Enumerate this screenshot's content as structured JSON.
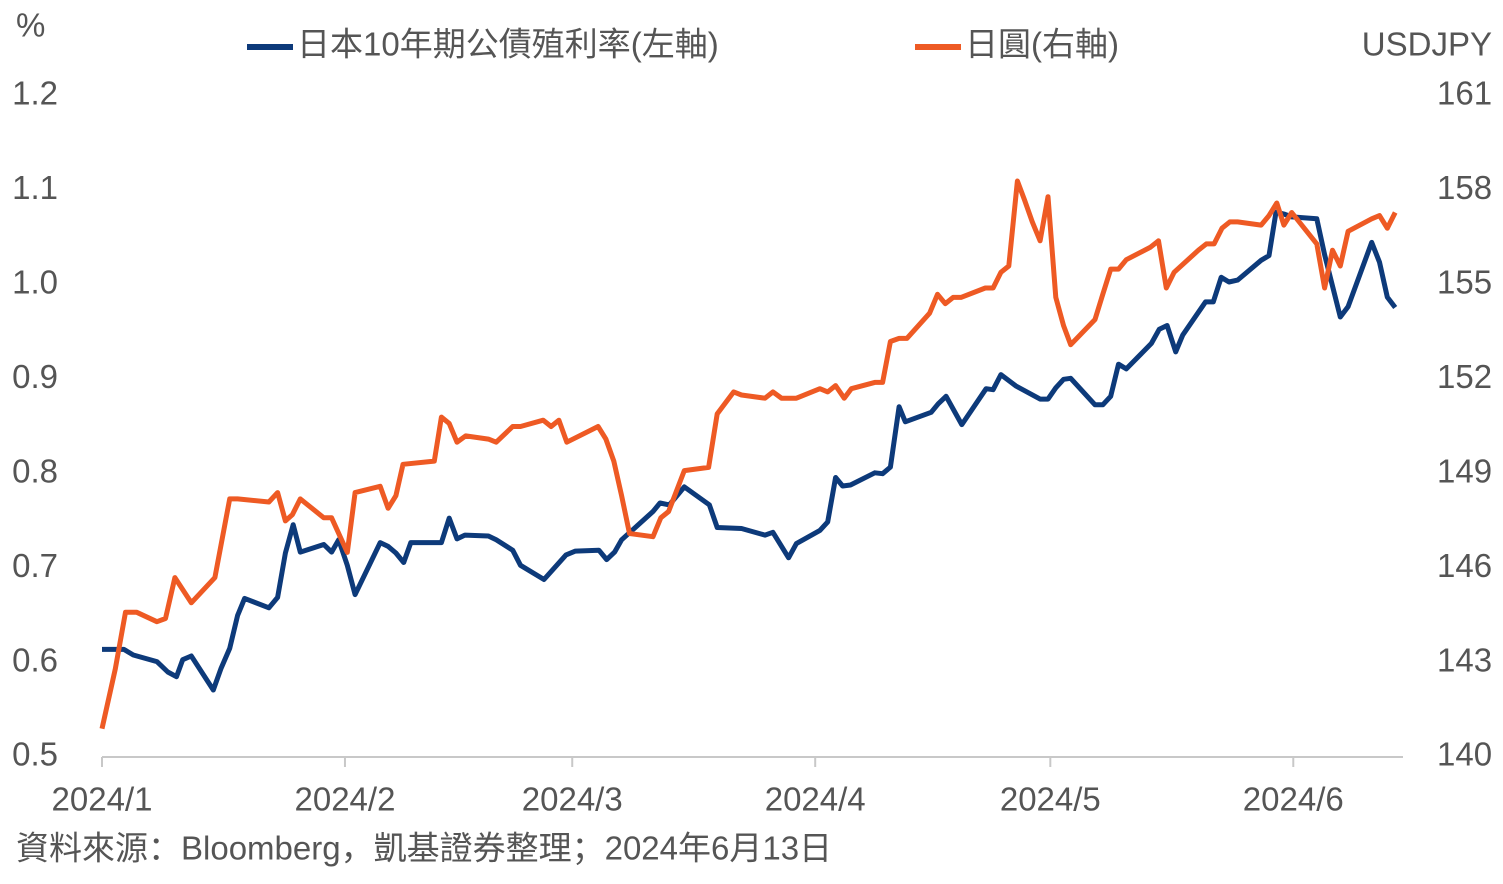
{
  "chart_data": {
    "type": "line",
    "y_label": "%",
    "y2_label": "USDJPY",
    "source": "資料來源：Bloomberg，凱基證券整理；2024年6月13日",
    "xlim": [
      0,
      166
    ],
    "xticks": [
      {
        "value": 0,
        "label": "2024/1"
      },
      {
        "value": 31,
        "label": "2024/2"
      },
      {
        "value": 60,
        "label": "2024/3"
      },
      {
        "value": 91,
        "label": "2024/4"
      },
      {
        "value": 121,
        "label": "2024/5"
      },
      {
        "value": 152,
        "label": "2024/6"
      }
    ],
    "ylim": [
      0.5,
      1.2
    ],
    "yticks": [
      0.5,
      0.6,
      0.7,
      0.8,
      0.9,
      {
        "value": 1,
        "label": "1.0"
      },
      1.1,
      1.2
    ],
    "y2lim": [
      140,
      161
    ],
    "y2ticks": [
      140,
      143,
      146,
      149,
      152,
      155,
      158,
      161
    ],
    "series": [
      {
        "name": "日本10年期公債殖利率(左軸)",
        "color": "#0d3a7a",
        "axis": "y",
        "x": [
          0,
          2.8,
          4,
          7,
          8.4,
          9.5,
          10.3,
          11.4,
          14.2,
          15.2,
          16.3,
          17.3,
          18.2,
          21.3,
          22.4,
          23.4,
          24.4,
          25.3,
          28.3,
          29.3,
          30.2,
          31.3,
          32.3,
          35.5,
          36.5,
          37.5,
          38.5,
          39.4,
          43.3,
          44.3,
          45.3,
          46.3,
          49.3,
          50.3,
          52.4,
          53.4,
          56.4,
          59.2,
          60.4,
          63.4,
          64.4,
          65.4,
          66.3,
          70.3,
          71.2,
          72.4,
          74.3,
          77.5,
          78.5,
          81.6,
          84.6,
          85.6,
          87.6,
          88.6,
          91.6,
          92.6,
          93.6,
          94.5,
          95.5,
          98.6,
          99.6,
          100.6,
          101.7,
          102.5,
          105.8,
          106.7,
          107.7,
          109.7,
          112.8,
          113.7,
          114.7,
          116.6,
          119.7,
          120.7,
          121.7,
          122.7,
          123.6,
          126.7,
          127.7,
          128.7,
          129.7,
          130.7,
          133.9,
          134.9,
          135.9,
          137,
          137.9,
          140.8,
          141.8,
          142.8,
          143.8,
          144.9,
          147.9,
          148.9,
          149.8,
          150.8,
          151.8,
          155,
          156,
          158,
          159,
          162,
          163,
          164,
          165
        ],
        "values": [
          0.614,
          0.614,
          0.608,
          0.601,
          0.59,
          0.585,
          0.603,
          0.607,
          0.571,
          0.594,
          0.615,
          0.65,
          0.668,
          0.658,
          0.669,
          0.716,
          0.746,
          0.717,
          0.725,
          0.717,
          0.73,
          0.703,
          0.672,
          0.727,
          0.723,
          0.716,
          0.706,
          0.727,
          0.727,
          0.753,
          0.731,
          0.735,
          0.734,
          0.73,
          0.719,
          0.703,
          0.688,
          0.714,
          0.718,
          0.719,
          0.709,
          0.717,
          0.73,
          0.76,
          0.769,
          0.767,
          0.786,
          0.767,
          0.743,
          0.742,
          0.735,
          0.738,
          0.711,
          0.726,
          0.74,
          0.749,
          0.796,
          0.787,
          0.788,
          0.801,
          0.8,
          0.807,
          0.871,
          0.855,
          0.865,
          0.874,
          0.882,
          0.852,
          0.89,
          0.889,
          0.905,
          0.893,
          0.879,
          0.879,
          0.891,
          0.9,
          0.901,
          0.873,
          0.873,
          0.882,
          0.916,
          0.911,
          0.938,
          0.953,
          0.957,
          0.929,
          0.947,
          0.982,
          0.982,
          1.008,
          1.003,
          1.005,
          1.026,
          1.031,
          1.077,
          1.075,
          1.072,
          1.07,
          1.032,
          0.966,
          0.977,
          1.045,
          1.024,
          0.987,
          0.976
        ]
      },
      {
        "name": "日圓(右軸)",
        "color": "#ee5a24",
        "axis": "y2",
        "x": [
          0,
          1.7,
          3,
          4.4,
          7,
          8.1,
          9.3,
          11.4,
          14.4,
          16.3,
          17.3,
          21.3,
          22.4,
          23.4,
          24.3,
          25.3,
          28.3,
          29.3,
          31.3,
          32.3,
          35.5,
          36.5,
          37.5,
          38.4,
          42.4,
          43.3,
          44.3,
          45.3,
          46.4,
          49.3,
          50.3,
          52.4,
          53.4,
          56.3,
          57.3,
          58.3,
          59.3,
          63.3,
          64.3,
          65.3,
          66.3,
          67.3,
          70.3,
          71.3,
          72.3,
          74.3,
          77.4,
          78.5,
          80.6,
          81.6,
          84.6,
          85.6,
          86.7,
          87.7,
          88.6,
          91.6,
          92.6,
          93.6,
          94.7,
          95.6,
          98.6,
          99.6,
          100.6,
          101.7,
          102.7,
          105.6,
          106.6,
          107.6,
          108.6,
          109.6,
          112.7,
          113.7,
          114.7,
          115.7,
          116.8,
          117.7,
          118.7,
          119.7,
          120.7,
          121.7,
          122.7,
          123.6,
          126.7,
          127.7,
          128.7,
          129.7,
          130.7,
          133.8,
          134.8,
          135.8,
          136.8,
          139.9,
          140.9,
          141.9,
          142.9,
          143.9,
          144.9,
          147.9,
          148.9,
          149.9,
          150.8,
          151.8,
          155,
          156,
          157,
          158,
          159,
          162,
          163,
          164,
          165
        ],
        "values": [
          140.9,
          142.8,
          144.6,
          144.6,
          144.3,
          144.4,
          145.7,
          144.9,
          145.7,
          148.2,
          148.2,
          148.1,
          148.4,
          147.5,
          147.7,
          148.2,
          147.6,
          147.6,
          146.5,
          148.4,
          148.6,
          147.9,
          148.3,
          149.3,
          149.4,
          150.8,
          150.6,
          150.0,
          150.2,
          150.1,
          150.0,
          150.5,
          150.5,
          150.7,
          150.5,
          150.7,
          150.0,
          150.5,
          150.1,
          149.4,
          148.3,
          147.1,
          147.0,
          147.6,
          147.8,
          149.1,
          149.2,
          150.9,
          151.6,
          151.5,
          151.4,
          151.6,
          151.4,
          151.4,
          151.4,
          151.7,
          151.6,
          151.8,
          151.4,
          151.7,
          151.9,
          151.9,
          153.2,
          153.3,
          153.3,
          154.1,
          154.7,
          154.4,
          154.6,
          154.6,
          154.9,
          154.9,
          155.4,
          155.6,
          158.3,
          157.7,
          157.0,
          156.4,
          157.8,
          154.6,
          153.7,
          153.1,
          153.9,
          154.7,
          155.5,
          155.5,
          155.8,
          156.2,
          156.4,
          154.9,
          155.4,
          156.1,
          156.3,
          156.3,
          156.8,
          157.0,
          157.0,
          156.9,
          157.2,
          157.6,
          156.9,
          157.3,
          156.3,
          154.9,
          156.1,
          155.6,
          156.7,
          157.1,
          157.2,
          156.8,
          157.3
        ]
      }
    ]
  }
}
